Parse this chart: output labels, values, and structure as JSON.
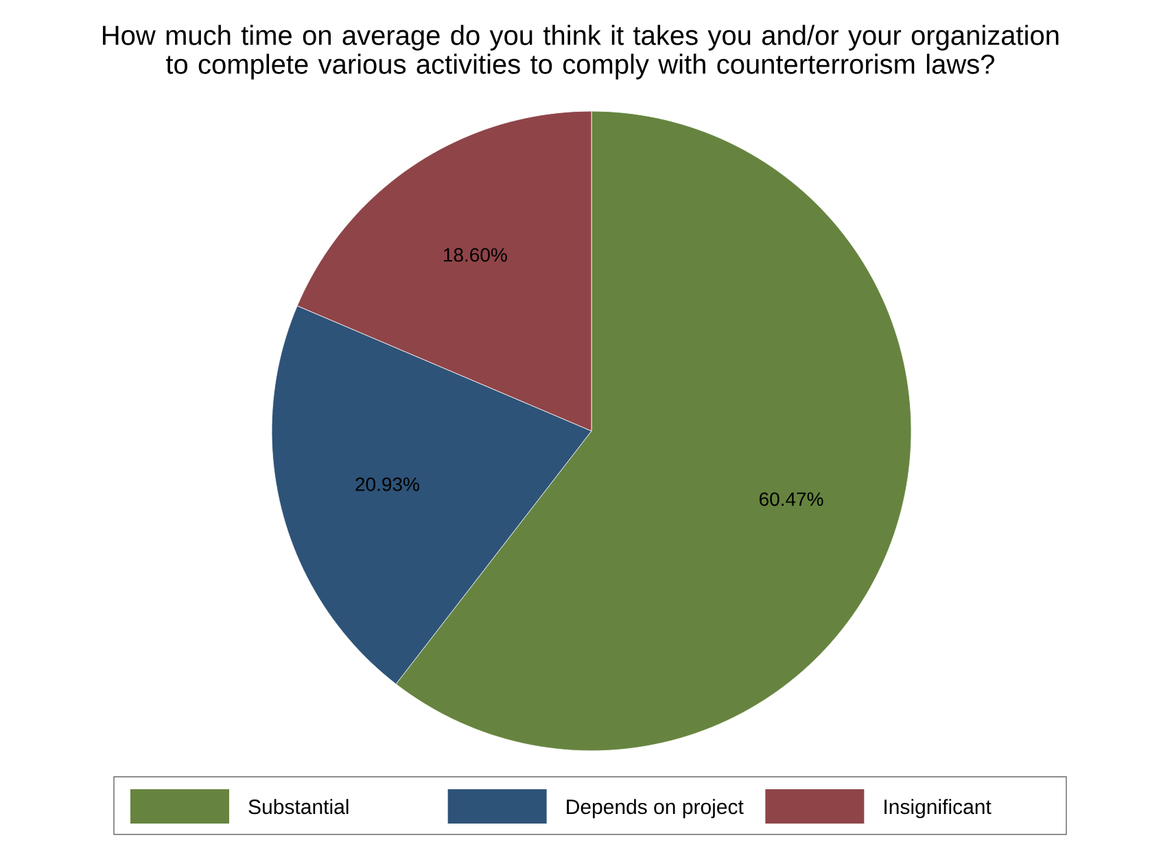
{
  "chart_data": {
    "type": "pie",
    "title": "How much time on average do you think it takes you and/or your organization to complete various activities to comply with counterterrorism laws?",
    "categories": [
      "Substantial",
      "Depends on project",
      "Insignificant"
    ],
    "values": [
      60.47,
      20.93,
      18.6
    ],
    "colors": [
      "#66843f",
      "#2e5378",
      "#8f4448"
    ],
    "value_labels": [
      "60.47%",
      "20.93%",
      "18.60%"
    ],
    "legend": "bottom"
  }
}
